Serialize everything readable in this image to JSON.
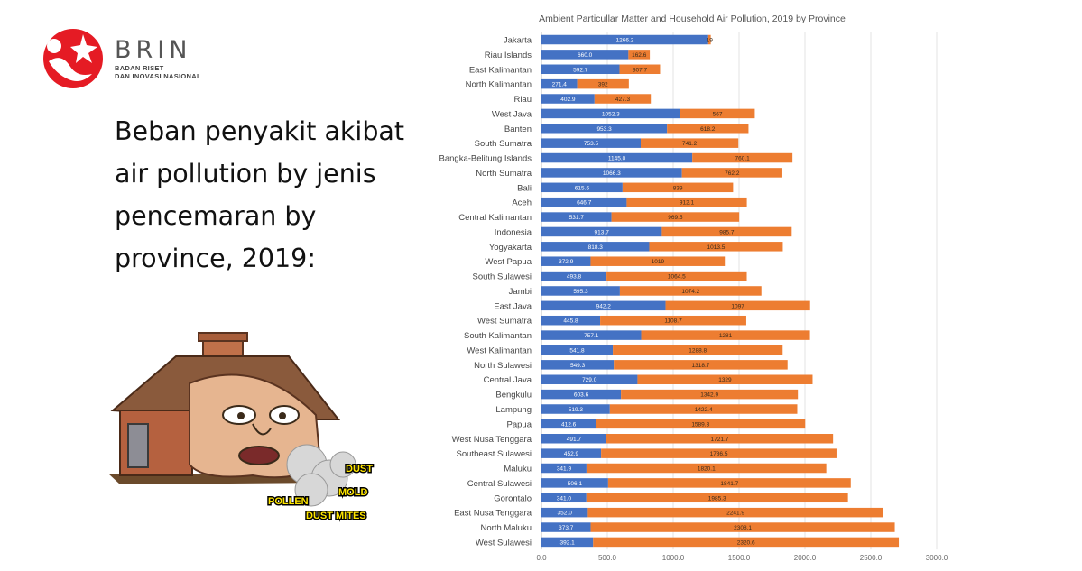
{
  "brand": {
    "name": "BRIN",
    "tagline_1": "BADAN RISET",
    "tagline_2": "DAN INOVASI NASIONAL",
    "logo_color": "#e51b24"
  },
  "headline": "Beban penyakit akibat air pollution by jenis pencemaran by province, 2019:",
  "illustration": {
    "labels": [
      "DUST",
      "MOLD",
      "POLLEN",
      "DUST MITES"
    ]
  },
  "chart_data": {
    "type": "bar",
    "orientation": "horizontal",
    "stacked": true,
    "title": "Ambient Particullar Matter and Household Air Pollution,  2019 by Province",
    "xlim": [
      0,
      3000
    ],
    "xticks": [
      "0.0",
      "500.0",
      "1000.0",
      "1500.0",
      "2000.0",
      "2500.0",
      "3000.0"
    ],
    "grid": "vertical",
    "colors": [
      "#4472c4",
      "#ed7d31"
    ],
    "categories": [
      "Jakarta",
      "Riau Islands",
      "East Kalimantan",
      "North Kalimantan",
      "Riau",
      "West Java",
      "Banten",
      "South Sumatra",
      "Bangka-Belitung Islands",
      "North Sumatra",
      "Bali",
      "Aceh",
      "Central Kalimantan",
      "Indonesia",
      "Yogyakarta",
      "West Papua",
      "South Sulawesi",
      "Jambi",
      "East Java",
      "West Sumatra",
      "South Kalimantan",
      "West Kalimantan",
      "North Sulawesi",
      "Central Java",
      "Bengkulu",
      "Lampung",
      "Papua",
      "West Nusa Tenggara",
      "Southeast Sulawesi",
      "Maluku",
      "Central Sulawesi",
      "Gorontalo",
      "East Nusa Tenggara",
      "North Maluku",
      "West Sulawesi"
    ],
    "series": [
      {
        "values": [
          1266.2,
          660.0,
          592.7,
          271.4,
          402.9,
          1052.3,
          953.3,
          753.5,
          1145.0,
          1066.3,
          615.6,
          646.7,
          531.7,
          913.7,
          818.3,
          372.9,
          493.8,
          595.3,
          942.2,
          445.8,
          757.1,
          541.8,
          549.3,
          729.0,
          603.6,
          519.3,
          412.6,
          491.7,
          452.9,
          341.9,
          506.1,
          341.0,
          352.0,
          373.7,
          392.1
        ],
        "labels": [
          "1266.2",
          "660.0",
          "592.7",
          "271.4",
          "402.9",
          "1052.3",
          "953.3",
          "753.5",
          "1145.0",
          "1066.3",
          "615.6",
          "646.7",
          "531.7",
          "913.7",
          "818.3",
          "372.9",
          "493.8",
          "595.3",
          "942.2",
          "445.8",
          "757.1",
          "541.8",
          "549.3",
          "729.0",
          "603.6",
          "519.3",
          "412.6",
          "491.7",
          "452.9",
          "341.9",
          "506.1",
          "341.0",
          "352.0",
          "373.7",
          "392.1"
        ]
      },
      {
        "values": [
          19,
          162.6,
          307.7,
          392,
          427.3,
          567,
          618.2,
          741.2,
          760.1,
          762.2,
          839,
          912.1,
          969.5,
          985.7,
          1013.5,
          1019,
          1064.5,
          1074.2,
          1097,
          1108.7,
          1281,
          1288.8,
          1318.7,
          1329,
          1342.9,
          1422.4,
          1589.3,
          1721.7,
          1786.5,
          1820.1,
          1841.7,
          1985.3,
          2241.9,
          2308.1,
          2320.6
        ],
        "labels": [
          "19",
          "162.6",
          "307.7",
          "392",
          "427.3",
          "567",
          "618.2",
          "741.2",
          "760.1",
          "762.2",
          "839",
          "912.1",
          "969.5",
          "985.7",
          "1013.5",
          "1019",
          "1064.5",
          "1074.2",
          "1097",
          "1108.7",
          "1281",
          "1288.8",
          "1318.7",
          "1329",
          "1342.9",
          "1422.4",
          "1589.3",
          "1721.7",
          "1786.5",
          "1820.1",
          "1841.7",
          "1985.3",
          "2241.9",
          "2308.1",
          "2320.6"
        ]
      }
    ]
  }
}
